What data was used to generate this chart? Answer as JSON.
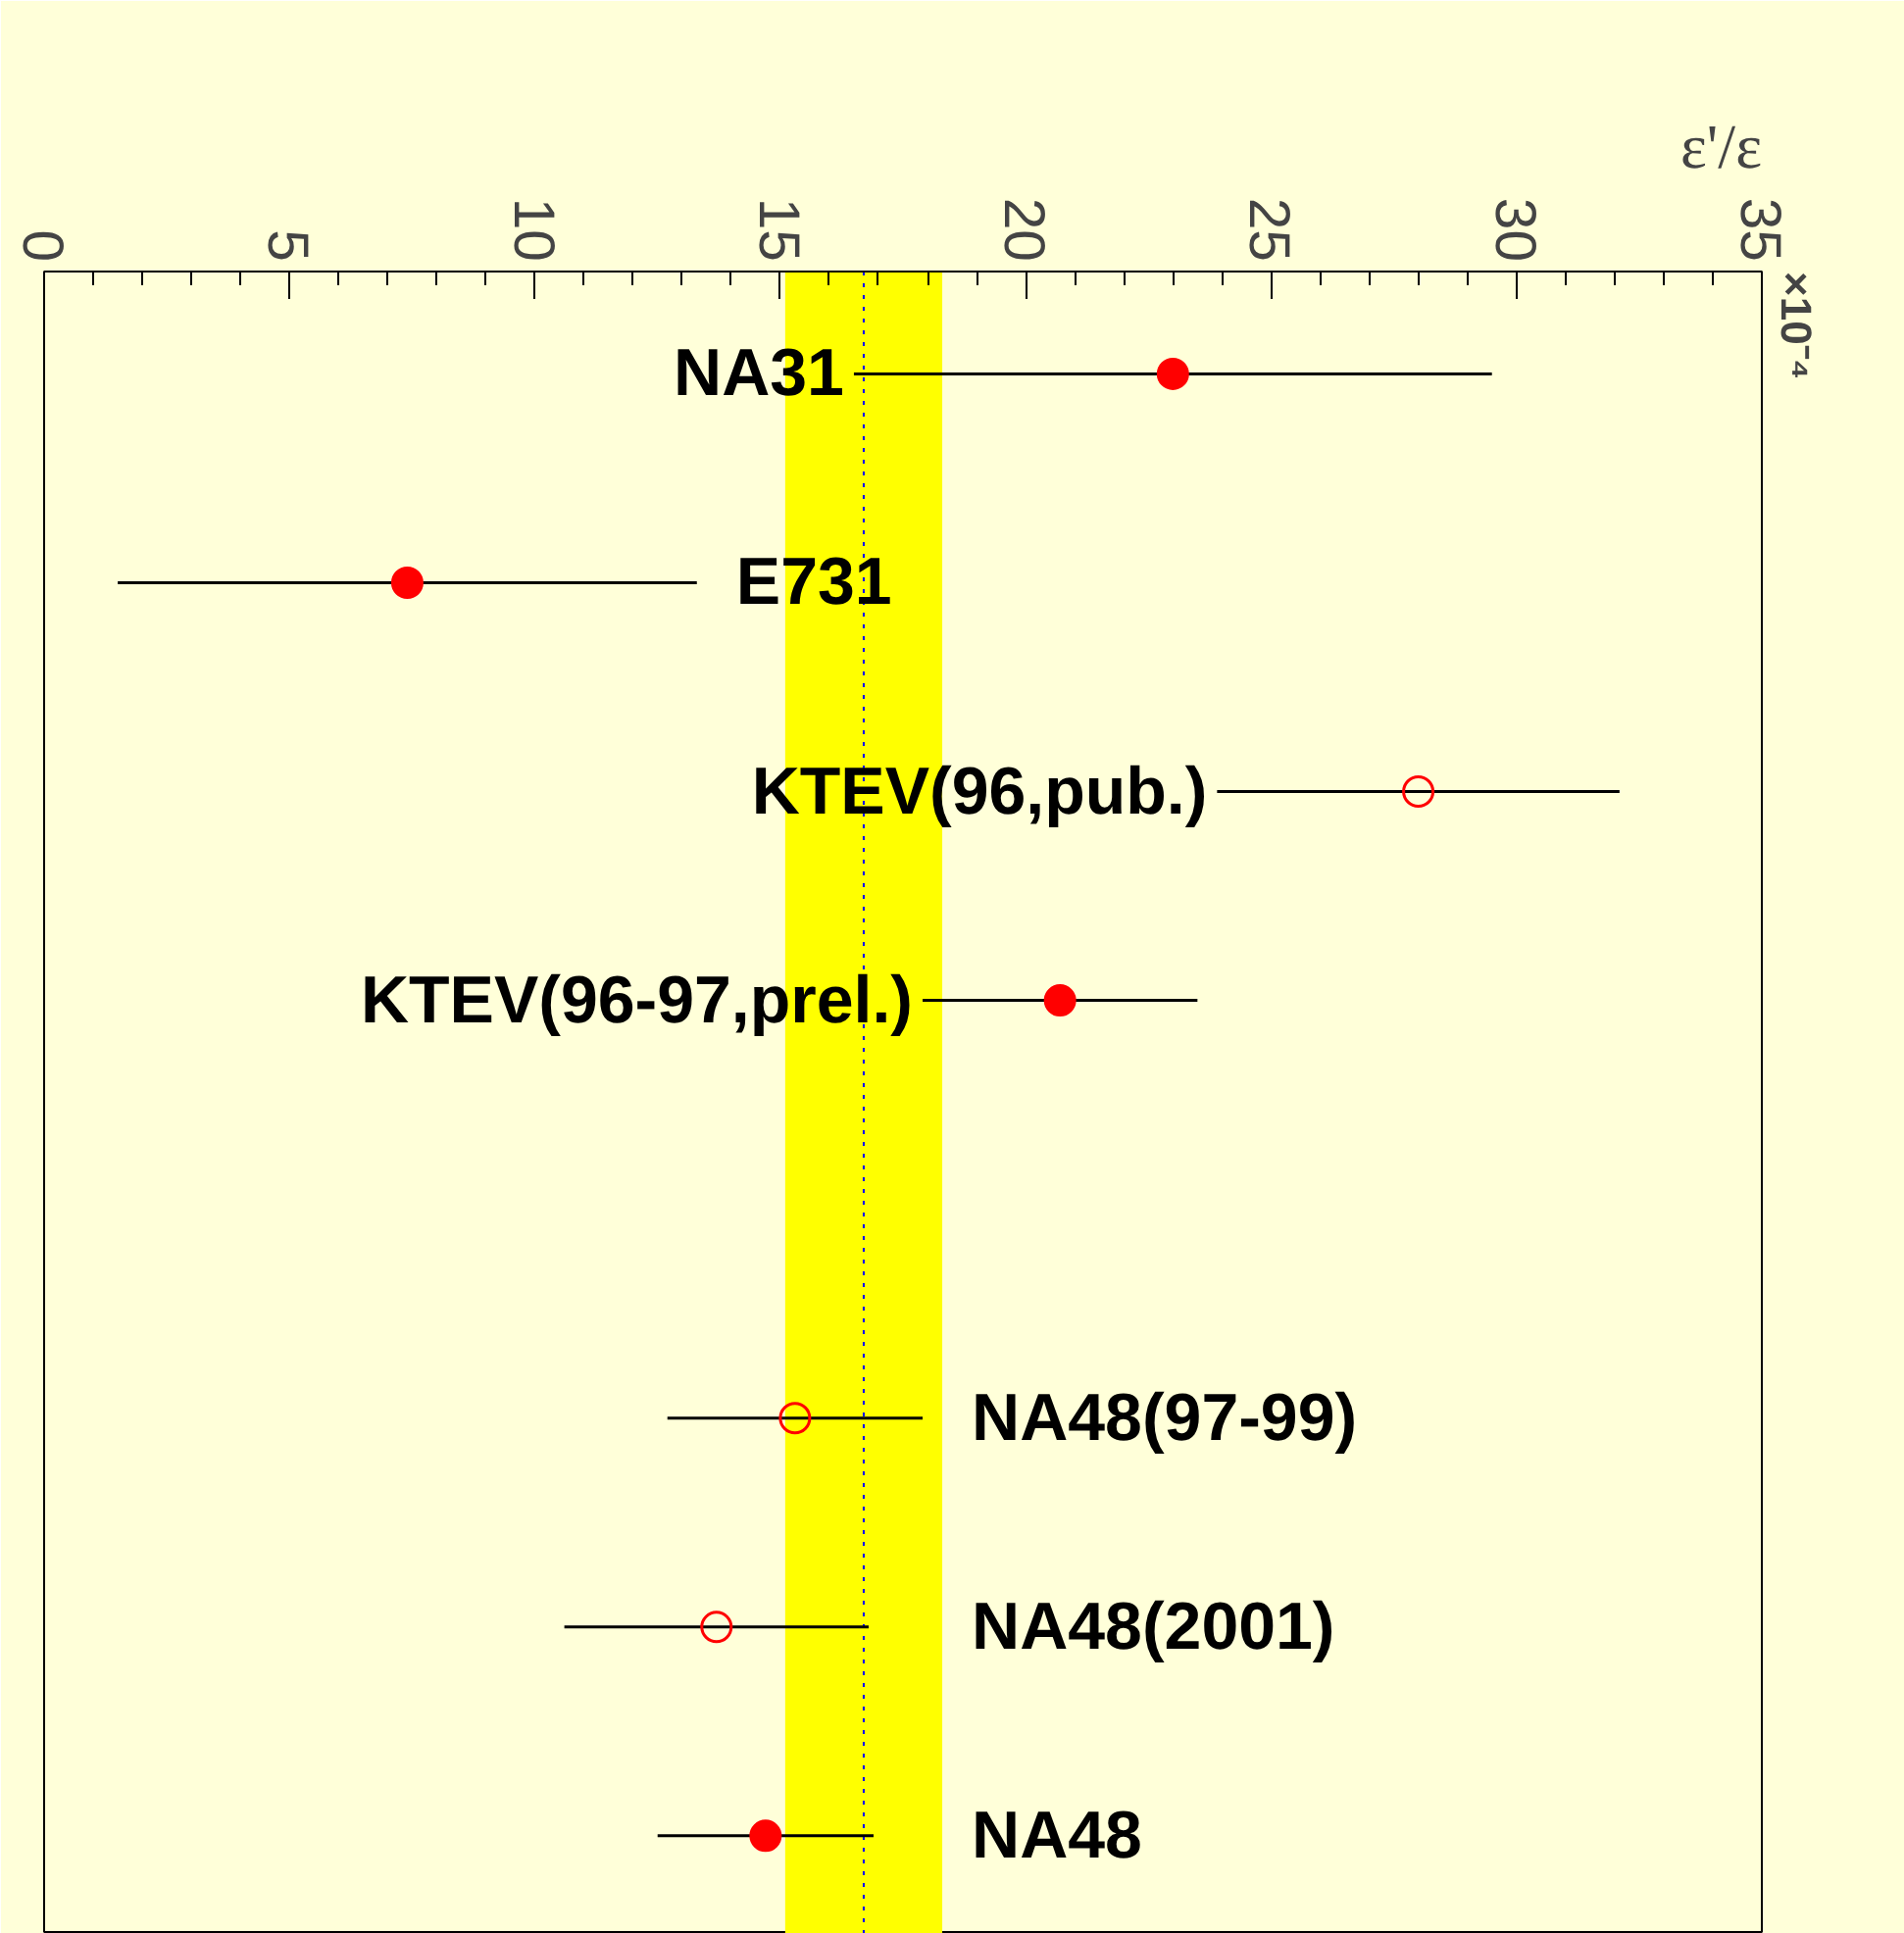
{
  "chart_data": {
    "type": "scatter",
    "orientation": "horizontal",
    "xlabel": "ε'/ε",
    "categories": [
      "NA31",
      "E731",
      "KTEV(96,pub.)",
      "KTEV(96-97,prel.)",
      null,
      "NA48(97-99)",
      "NA48(2001)",
      "NA48"
    ],
    "values": [
      23.0,
      7.4,
      28.0,
      20.7,
      null,
      15.3,
      13.7,
      14.7
    ],
    "errors": [
      6.5,
      5.9,
      4.1,
      2.8,
      null,
      2.6,
      3.1,
      2.2
    ],
    "color": "#ff0000",
    "colors": [
      "#ff0000",
      "#ff0000",
      null,
      "#ff0000",
      null,
      null,
      null,
      "#ff0000"
    ],
    "marker": "circle",
    "xlim": [
      0,
      35
    ],
    "xticks": [
      0,
      5,
      10,
      15,
      20,
      25,
      30,
      35
    ],
    "ref_lines": [
      {
        "axis": "x",
        "value": 16.7,
        "color": "#0000ff",
        "line_style": "dotted"
      }
    ],
    "bands": [
      {
        "axis": "x",
        "from": 15.1,
        "to": 18.3,
        "color": "#ffff00"
      }
    ],
    "annotations": [
      "×10⁻⁴"
    ],
    "grid": false
  }
}
